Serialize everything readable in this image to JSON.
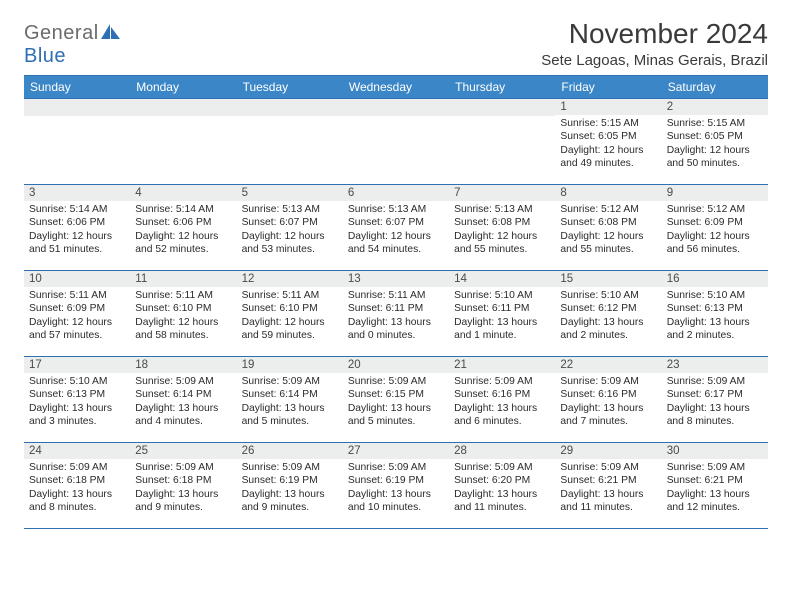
{
  "brand": {
    "part1": "General",
    "part2": "Blue"
  },
  "title": "November 2024",
  "location": "Sete Lagoas, Minas Gerais, Brazil",
  "colors": {
    "header_bg": "#3b86c7",
    "header_border": "#2f6fb3",
    "daynum_bg": "#eceded",
    "text": "#2b2b2b",
    "logo_gray": "#6b6b6b",
    "logo_blue": "#2f6fb3",
    "page_bg": "#ffffff"
  },
  "weekdays": [
    "Sunday",
    "Monday",
    "Tuesday",
    "Wednesday",
    "Thursday",
    "Friday",
    "Saturday"
  ],
  "weeks": [
    [
      null,
      null,
      null,
      null,
      null,
      {
        "n": "1",
        "sr": "5:15 AM",
        "ss": "6:05 PM",
        "dl": "12 hours and 49 minutes."
      },
      {
        "n": "2",
        "sr": "5:15 AM",
        "ss": "6:05 PM",
        "dl": "12 hours and 50 minutes."
      }
    ],
    [
      {
        "n": "3",
        "sr": "5:14 AM",
        "ss": "6:06 PM",
        "dl": "12 hours and 51 minutes."
      },
      {
        "n": "4",
        "sr": "5:14 AM",
        "ss": "6:06 PM",
        "dl": "12 hours and 52 minutes."
      },
      {
        "n": "5",
        "sr": "5:13 AM",
        "ss": "6:07 PM",
        "dl": "12 hours and 53 minutes."
      },
      {
        "n": "6",
        "sr": "5:13 AM",
        "ss": "6:07 PM",
        "dl": "12 hours and 54 minutes."
      },
      {
        "n": "7",
        "sr": "5:13 AM",
        "ss": "6:08 PM",
        "dl": "12 hours and 55 minutes."
      },
      {
        "n": "8",
        "sr": "5:12 AM",
        "ss": "6:08 PM",
        "dl": "12 hours and 55 minutes."
      },
      {
        "n": "9",
        "sr": "5:12 AM",
        "ss": "6:09 PM",
        "dl": "12 hours and 56 minutes."
      }
    ],
    [
      {
        "n": "10",
        "sr": "5:11 AM",
        "ss": "6:09 PM",
        "dl": "12 hours and 57 minutes."
      },
      {
        "n": "11",
        "sr": "5:11 AM",
        "ss": "6:10 PM",
        "dl": "12 hours and 58 minutes."
      },
      {
        "n": "12",
        "sr": "5:11 AM",
        "ss": "6:10 PM",
        "dl": "12 hours and 59 minutes."
      },
      {
        "n": "13",
        "sr": "5:11 AM",
        "ss": "6:11 PM",
        "dl": "13 hours and 0 minutes."
      },
      {
        "n": "14",
        "sr": "5:10 AM",
        "ss": "6:11 PM",
        "dl": "13 hours and 1 minute."
      },
      {
        "n": "15",
        "sr": "5:10 AM",
        "ss": "6:12 PM",
        "dl": "13 hours and 2 minutes."
      },
      {
        "n": "16",
        "sr": "5:10 AM",
        "ss": "6:13 PM",
        "dl": "13 hours and 2 minutes."
      }
    ],
    [
      {
        "n": "17",
        "sr": "5:10 AM",
        "ss": "6:13 PM",
        "dl": "13 hours and 3 minutes."
      },
      {
        "n": "18",
        "sr": "5:09 AM",
        "ss": "6:14 PM",
        "dl": "13 hours and 4 minutes."
      },
      {
        "n": "19",
        "sr": "5:09 AM",
        "ss": "6:14 PM",
        "dl": "13 hours and 5 minutes."
      },
      {
        "n": "20",
        "sr": "5:09 AM",
        "ss": "6:15 PM",
        "dl": "13 hours and 5 minutes."
      },
      {
        "n": "21",
        "sr": "5:09 AM",
        "ss": "6:16 PM",
        "dl": "13 hours and 6 minutes."
      },
      {
        "n": "22",
        "sr": "5:09 AM",
        "ss": "6:16 PM",
        "dl": "13 hours and 7 minutes."
      },
      {
        "n": "23",
        "sr": "5:09 AM",
        "ss": "6:17 PM",
        "dl": "13 hours and 8 minutes."
      }
    ],
    [
      {
        "n": "24",
        "sr": "5:09 AM",
        "ss": "6:18 PM",
        "dl": "13 hours and 8 minutes."
      },
      {
        "n": "25",
        "sr": "5:09 AM",
        "ss": "6:18 PM",
        "dl": "13 hours and 9 minutes."
      },
      {
        "n": "26",
        "sr": "5:09 AM",
        "ss": "6:19 PM",
        "dl": "13 hours and 9 minutes."
      },
      {
        "n": "27",
        "sr": "5:09 AM",
        "ss": "6:19 PM",
        "dl": "13 hours and 10 minutes."
      },
      {
        "n": "28",
        "sr": "5:09 AM",
        "ss": "6:20 PM",
        "dl": "13 hours and 11 minutes."
      },
      {
        "n": "29",
        "sr": "5:09 AM",
        "ss": "6:21 PM",
        "dl": "13 hours and 11 minutes."
      },
      {
        "n": "30",
        "sr": "5:09 AM",
        "ss": "6:21 PM",
        "dl": "13 hours and 12 minutes."
      }
    ]
  ],
  "labels": {
    "sunrise": "Sunrise: ",
    "sunset": "Sunset: ",
    "daylight": "Daylight: "
  }
}
